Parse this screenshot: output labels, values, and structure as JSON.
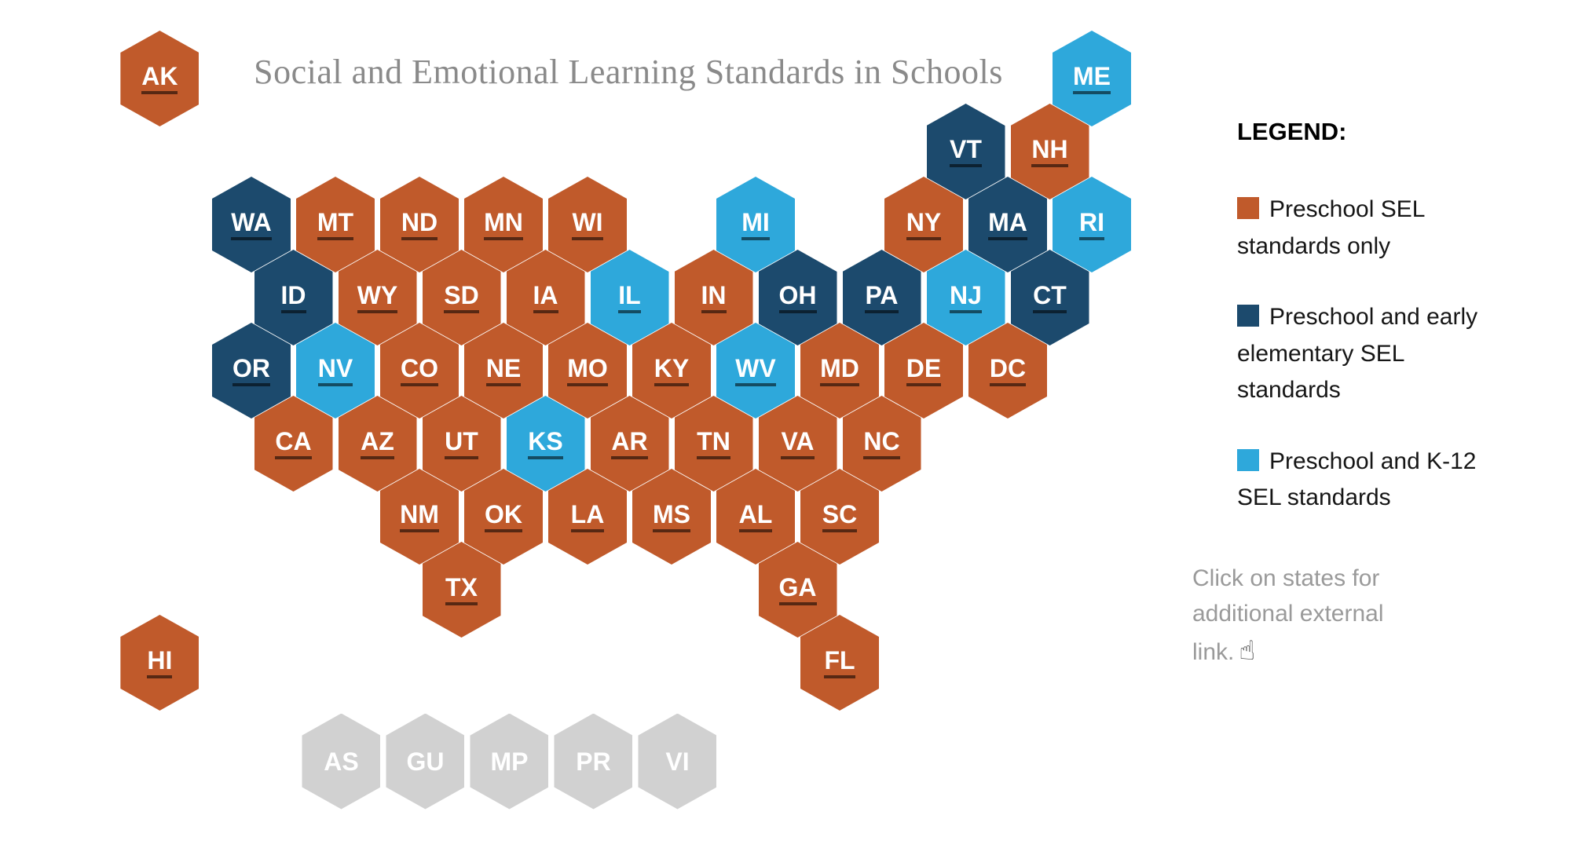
{
  "title": "Social and Emotional Learning Standards in Schools",
  "colors": {
    "preschool_only": "#C05A2B",
    "preschool_early_elem": "#1C4A6D",
    "preschool_k12": "#2EA8DB",
    "territory": "#D1D1D1",
    "label_text": "#FFFFFF",
    "label_underline": "rgba(0,0,0,0.55)",
    "title_gray": "#8A8A8A",
    "note_gray": "#9A9A9A"
  },
  "legend": {
    "heading": "LEGEND:",
    "items": [
      {
        "category": "preschool_only",
        "color": "#C05A2B",
        "label": "Preschool SEL standards only"
      },
      {
        "category": "preschool_early_elem",
        "color": "#1C4A6D",
        "label": "Preschool and early elementary SEL standards"
      },
      {
        "category": "preschool_k12",
        "color": "#2EA8DB",
        "label": "Preschool and K-12 SEL standards"
      }
    ],
    "note": "Click on states for additional external link.",
    "note_icon_glyph": "☝"
  },
  "map": {
    "states": [
      {
        "abbr": "AK",
        "category": "preschool_only",
        "r": 0,
        "c": -1.09
      },
      {
        "abbr": "ME",
        "category": "preschool_k12",
        "r": 0,
        "c": 10
      },
      {
        "abbr": "VT",
        "category": "preschool_early_elem",
        "r": 1,
        "c": 8.5
      },
      {
        "abbr": "NH",
        "category": "preschool_only",
        "r": 1,
        "c": 9.5
      },
      {
        "abbr": "WA",
        "category": "preschool_early_elem",
        "r": 2,
        "c": 0
      },
      {
        "abbr": "MT",
        "category": "preschool_only",
        "r": 2,
        "c": 1
      },
      {
        "abbr": "ND",
        "category": "preschool_only",
        "r": 2,
        "c": 2
      },
      {
        "abbr": "MN",
        "category": "preschool_only",
        "r": 2,
        "c": 3
      },
      {
        "abbr": "WI",
        "category": "preschool_only",
        "r": 2,
        "c": 4
      },
      {
        "abbr": "MI",
        "category": "preschool_k12",
        "r": 2,
        "c": 6
      },
      {
        "abbr": "NY",
        "category": "preschool_only",
        "r": 2,
        "c": 8
      },
      {
        "abbr": "MA",
        "category": "preschool_early_elem",
        "r": 2,
        "c": 9
      },
      {
        "abbr": "RI",
        "category": "preschool_k12",
        "r": 2,
        "c": 10
      },
      {
        "abbr": "ID",
        "category": "preschool_early_elem",
        "r": 3,
        "c": 0.5
      },
      {
        "abbr": "WY",
        "category": "preschool_only",
        "r": 3,
        "c": 1.5
      },
      {
        "abbr": "SD",
        "category": "preschool_only",
        "r": 3,
        "c": 2.5
      },
      {
        "abbr": "IA",
        "category": "preschool_only",
        "r": 3,
        "c": 3.5
      },
      {
        "abbr": "IL",
        "category": "preschool_k12",
        "r": 3,
        "c": 4.5
      },
      {
        "abbr": "IN",
        "category": "preschool_only",
        "r": 3,
        "c": 5.5
      },
      {
        "abbr": "OH",
        "category": "preschool_early_elem",
        "r": 3,
        "c": 6.5
      },
      {
        "abbr": "PA",
        "category": "preschool_early_elem",
        "r": 3,
        "c": 7.5
      },
      {
        "abbr": "NJ",
        "category": "preschool_k12",
        "r": 3,
        "c": 8.5
      },
      {
        "abbr": "CT",
        "category": "preschool_early_elem",
        "r": 3,
        "c": 9.5
      },
      {
        "abbr": "OR",
        "category": "preschool_early_elem",
        "r": 4,
        "c": 0
      },
      {
        "abbr": "NV",
        "category": "preschool_k12",
        "r": 4,
        "c": 1
      },
      {
        "abbr": "CO",
        "category": "preschool_only",
        "r": 4,
        "c": 2
      },
      {
        "abbr": "NE",
        "category": "preschool_only",
        "r": 4,
        "c": 3
      },
      {
        "abbr": "MO",
        "category": "preschool_only",
        "r": 4,
        "c": 4
      },
      {
        "abbr": "KY",
        "category": "preschool_only",
        "r": 4,
        "c": 5
      },
      {
        "abbr": "WV",
        "category": "preschool_k12",
        "r": 4,
        "c": 6
      },
      {
        "abbr": "MD",
        "category": "preschool_only",
        "r": 4,
        "c": 7
      },
      {
        "abbr": "DE",
        "category": "preschool_only",
        "r": 4,
        "c": 8
      },
      {
        "abbr": "DC",
        "category": "preschool_only",
        "r": 4,
        "c": 9
      },
      {
        "abbr": "CA",
        "category": "preschool_only",
        "r": 5,
        "c": 0.5
      },
      {
        "abbr": "AZ",
        "category": "preschool_only",
        "r": 5,
        "c": 1.5
      },
      {
        "abbr": "UT",
        "category": "preschool_only",
        "r": 5,
        "c": 2.5
      },
      {
        "abbr": "KS",
        "category": "preschool_k12",
        "r": 5,
        "c": 3.5
      },
      {
        "abbr": "AR",
        "category": "preschool_only",
        "r": 5,
        "c": 4.5
      },
      {
        "abbr": "TN",
        "category": "preschool_only",
        "r": 5,
        "c": 5.5
      },
      {
        "abbr": "VA",
        "category": "preschool_only",
        "r": 5,
        "c": 6.5
      },
      {
        "abbr": "NC",
        "category": "preschool_only",
        "r": 5,
        "c": 7.5
      },
      {
        "abbr": "NM",
        "category": "preschool_only",
        "r": 6,
        "c": 2
      },
      {
        "abbr": "OK",
        "category": "preschool_only",
        "r": 6,
        "c": 3
      },
      {
        "abbr": "LA",
        "category": "preschool_only",
        "r": 6,
        "c": 4
      },
      {
        "abbr": "MS",
        "category": "preschool_only",
        "r": 6,
        "c": 5
      },
      {
        "abbr": "AL",
        "category": "preschool_only",
        "r": 6,
        "c": 6
      },
      {
        "abbr": "SC",
        "category": "preschool_only",
        "r": 6,
        "c": 7
      },
      {
        "abbr": "TX",
        "category": "preschool_only",
        "r": 7,
        "c": 2.5
      },
      {
        "abbr": "GA",
        "category": "preschool_only",
        "r": 7,
        "c": 6.5
      },
      {
        "abbr": "HI",
        "category": "preschool_only",
        "r": 8,
        "c": -1.09
      },
      {
        "abbr": "FL",
        "category": "preschool_only",
        "r": 8,
        "c": 7
      }
    ],
    "territories": [
      {
        "abbr": "AS",
        "category": "territory",
        "r": 9.35,
        "c": 1.07
      },
      {
        "abbr": "GU",
        "category": "territory",
        "r": 9.35,
        "c": 2.07
      },
      {
        "abbr": "MP",
        "category": "territory",
        "r": 9.35,
        "c": 3.07
      },
      {
        "abbr": "PR",
        "category": "territory",
        "r": 9.35,
        "c": 4.07
      },
      {
        "abbr": "VI",
        "category": "territory",
        "r": 9.35,
        "c": 5.07
      }
    ]
  }
}
